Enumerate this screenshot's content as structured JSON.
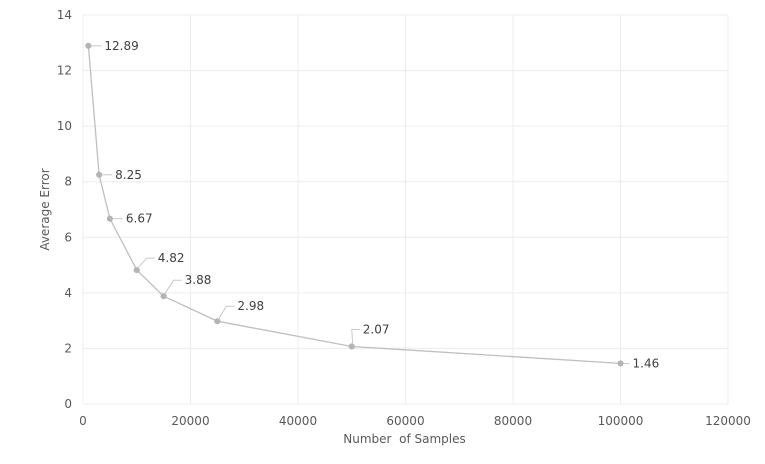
{
  "chart_data": {
    "type": "line",
    "xlabel": "Number  of Samples",
    "ylabel": "Average Error",
    "xlim": [
      0,
      120000
    ],
    "ylim": [
      0,
      14
    ],
    "x_ticks": [
      0,
      20000,
      40000,
      60000,
      80000,
      100000,
      120000
    ],
    "y_ticks": [
      0,
      2,
      4,
      6,
      8,
      10,
      12,
      14
    ],
    "grid": true,
    "legend": "none",
    "colors": {
      "line": "#bfbfbf",
      "marker": "#b4b4b4",
      "grid": "#ececec",
      "text": "#595959"
    },
    "series": [
      {
        "x": [
          1000,
          3000,
          5000,
          10000,
          15000,
          25000,
          50000,
          100000
        ],
        "y": [
          12.89,
          8.25,
          6.67,
          4.82,
          3.88,
          2.98,
          2.07,
          1.46
        ],
        "labels": [
          "12.89",
          "8.25",
          "6.67",
          "4.82",
          "3.88",
          "2.98",
          "2.07",
          "1.46"
        ]
      }
    ]
  }
}
